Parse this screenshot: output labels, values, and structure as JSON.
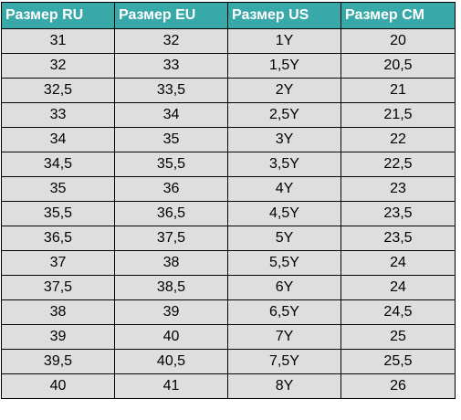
{
  "colors": {
    "header_bg": "#39a8a8",
    "header_text": "#ffffff",
    "cell_bg": "#dedede",
    "border": "#000000"
  },
  "table": {
    "headers": [
      "Размер RU",
      "Размер EU",
      "Размер US",
      "Размер CM"
    ],
    "rows": [
      [
        "31",
        "32",
        "1Y",
        "20"
      ],
      [
        "32",
        "33",
        "1,5Y",
        "20,5"
      ],
      [
        "32,5",
        "33,5",
        "2Y",
        "21"
      ],
      [
        "33",
        "34",
        "2,5Y",
        "21,5"
      ],
      [
        "34",
        "35",
        "3Y",
        "22"
      ],
      [
        "34,5",
        "35,5",
        "3,5Y",
        "22,5"
      ],
      [
        "35",
        "36",
        "4Y",
        "23"
      ],
      [
        "35,5",
        "36,5",
        "4,5Y",
        "23,5"
      ],
      [
        "36,5",
        "37,5",
        "5Y",
        "23,5"
      ],
      [
        "37",
        "38",
        "5,5Y",
        "24"
      ],
      [
        "37,5",
        "38,5",
        "6Y",
        "24"
      ],
      [
        "38",
        "39",
        "6,5Y",
        "24,5"
      ],
      [
        "39",
        "40",
        "7Y",
        "25"
      ],
      [
        "39,5",
        "40,5",
        "7,5Y",
        "25,5"
      ],
      [
        "40",
        "41",
        "8Y",
        "26"
      ]
    ]
  }
}
